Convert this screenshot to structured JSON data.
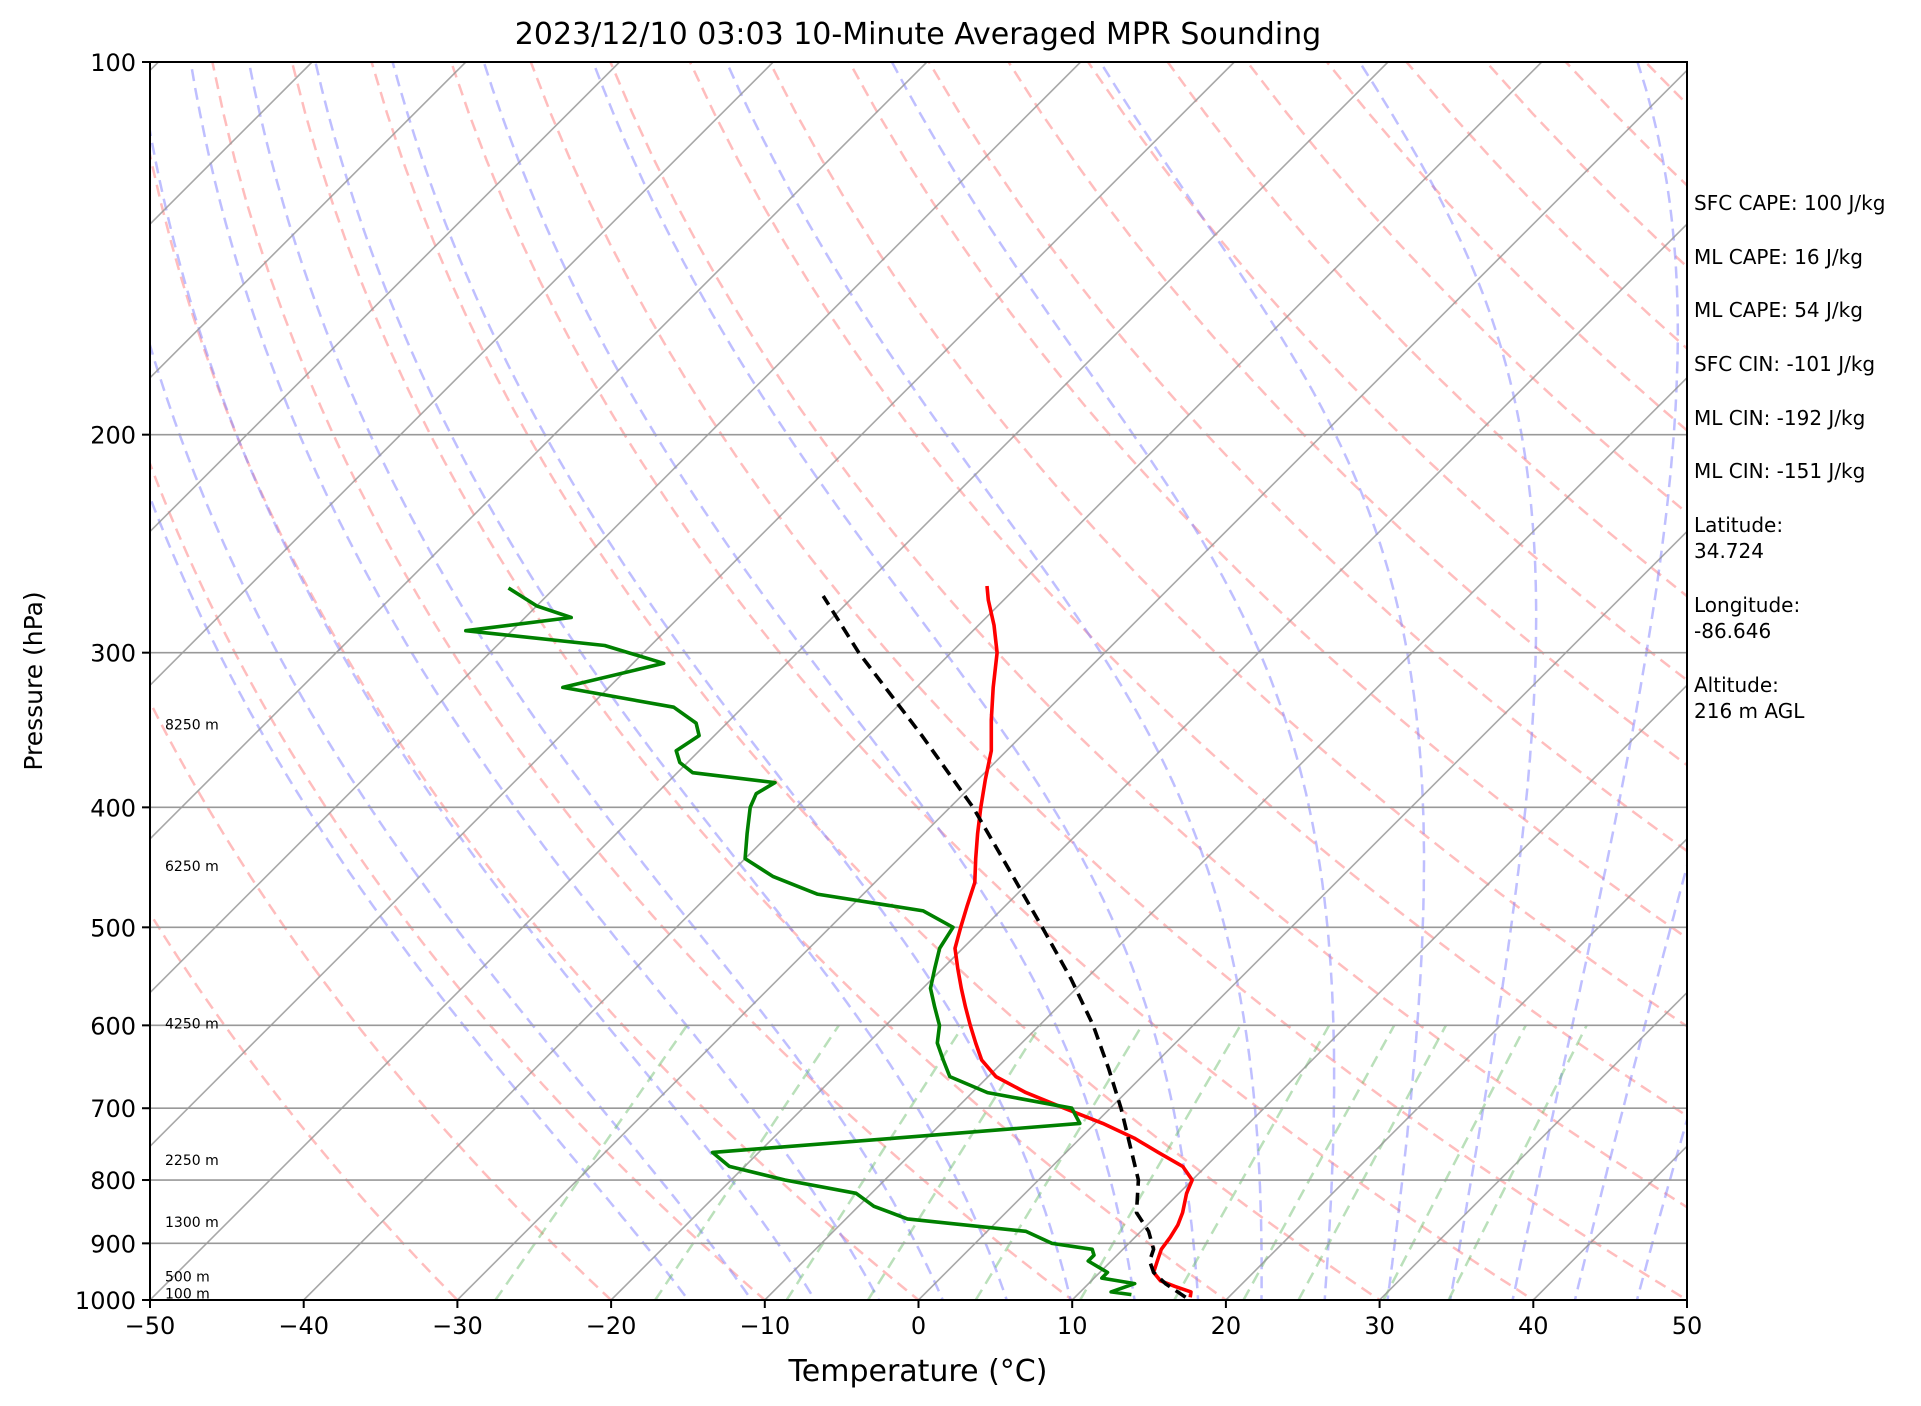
{
  "chart_data": {
    "type": "line",
    "title": "2023/12/10 03:03 10-Minute Averaged MPR Sounding",
    "xlabel": "Temperature (°C)",
    "ylabel": "Pressure (hPa)",
    "xlim": [
      -50,
      50
    ],
    "ylim": [
      1000,
      100
    ],
    "yscale": "log",
    "skew": true,
    "x_ticks": [
      "−50",
      "−40",
      "−30",
      "−20",
      "−10",
      "0",
      "10",
      "20",
      "30",
      "40",
      "50"
    ],
    "y_ticks": [
      "100",
      "200",
      "300",
      "400",
      "500",
      "600",
      "700",
      "800",
      "900",
      "1000"
    ],
    "grid": true,
    "height_labels": [
      {
        "p": 988,
        "text": "100 m"
      },
      {
        "p": 957,
        "text": "500 m"
      },
      {
        "p": 865,
        "text": "1300 m"
      },
      {
        "p": 771,
        "text": "2250 m"
      },
      {
        "p": 598,
        "text": "4250 m"
      },
      {
        "p": 446,
        "text": "6250 m"
      },
      {
        "p": 343,
        "text": "8250 m"
      }
    ],
    "series": [
      {
        "kind": "temperature",
        "color": "#ff0000",
        "points": [
          [
            17.5,
            995
          ],
          [
            17.2,
            985
          ],
          [
            15.8,
            975
          ],
          [
            14.5,
            965
          ],
          [
            13.5,
            950
          ],
          [
            13.0,
            930
          ],
          [
            12.5,
            910
          ],
          [
            12.3,
            890
          ],
          [
            12.0,
            870
          ],
          [
            11.5,
            850
          ],
          [
            10.5,
            820
          ],
          [
            10.0,
            800
          ],
          [
            8.5,
            780
          ],
          [
            6.0,
            760
          ],
          [
            3.5,
            740
          ],
          [
            0.5,
            720
          ],
          [
            -3.0,
            700
          ],
          [
            -6.5,
            680
          ],
          [
            -9.5,
            660
          ],
          [
            -11.5,
            640
          ],
          [
            -13.0,
            620
          ],
          [
            -14.5,
            600
          ],
          [
            -16.0,
            580
          ],
          [
            -17.5,
            560
          ],
          [
            -19.0,
            540
          ],
          [
            -20.5,
            520
          ],
          [
            -21.5,
            500
          ],
          [
            -22.5,
            480
          ],
          [
            -23.5,
            460
          ],
          [
            -25.0,
            440
          ],
          [
            -26.5,
            420
          ],
          [
            -28.0,
            400
          ],
          [
            -29.5,
            380
          ],
          [
            -31.0,
            360
          ],
          [
            -33.0,
            340
          ],
          [
            -35.0,
            320
          ],
          [
            -37.0,
            300
          ],
          [
            -39.0,
            285
          ],
          [
            -41.0,
            272
          ],
          [
            -42.0,
            265
          ]
        ]
      },
      {
        "kind": "dewpoint",
        "color": "#008000",
        "points": [
          [
            13.5,
            990
          ],
          [
            12.0,
            985
          ],
          [
            13.0,
            970
          ],
          [
            10.5,
            960
          ],
          [
            10.5,
            950
          ],
          [
            9.5,
            940
          ],
          [
            8.5,
            930
          ],
          [
            8.5,
            920
          ],
          [
            8.0,
            910
          ],
          [
            5.0,
            900
          ],
          [
            2.5,
            880
          ],
          [
            -6.0,
            860
          ],
          [
            -9.0,
            840
          ],
          [
            -11.0,
            820
          ],
          [
            -16.5,
            800
          ],
          [
            -21.0,
            780
          ],
          [
            -23.0,
            760
          ],
          [
            -12.0,
            740
          ],
          [
            -1.0,
            720
          ],
          [
            -2.5,
            700
          ],
          [
            -9.0,
            680
          ],
          [
            -12.5,
            660
          ],
          [
            -14.0,
            640
          ],
          [
            -15.5,
            620
          ],
          [
            -16.5,
            600
          ],
          [
            -18.0,
            580
          ],
          [
            -19.5,
            560
          ],
          [
            -20.5,
            540
          ],
          [
            -21.5,
            520
          ],
          [
            -22.0,
            500
          ],
          [
            -25.0,
            485
          ],
          [
            -33.0,
            470
          ],
          [
            -37.0,
            455
          ],
          [
            -40.0,
            440
          ],
          [
            -41.5,
            420
          ],
          [
            -43.0,
            400
          ],
          [
            -43.5,
            390
          ],
          [
            -43.0,
            382
          ],
          [
            -49.0,
            375
          ],
          [
            -50.5,
            368
          ],
          [
            -51.5,
            360
          ],
          [
            -51.0,
            350
          ],
          [
            -52.0,
            342
          ],
          [
            -54.5,
            332
          ],
          [
            -63.0,
            320
          ],
          [
            -58.0,
            306
          ],
          [
            -63.0,
            296
          ],
          [
            -73.0,
            288
          ],
          [
            -67.0,
            281
          ],
          [
            -70.0,
            275
          ],
          [
            -73.0,
            266
          ]
        ]
      },
      {
        "kind": "parcel",
        "color": "#000000",
        "points": [
          [
            17.2,
            995
          ],
          [
            15.0,
            970
          ],
          [
            13.5,
            950
          ],
          [
            12.5,
            930
          ],
          [
            12.0,
            910
          ],
          [
            10.5,
            880
          ],
          [
            8.5,
            850
          ],
          [
            6.5,
            800
          ],
          [
            3.7,
            750
          ],
          [
            0.7,
            700
          ],
          [
            -2.7,
            650
          ],
          [
            -6.5,
            600
          ],
          [
            -11.0,
            550
          ],
          [
            -16.2,
            500
          ],
          [
            -22.0,
            450
          ],
          [
            -28.5,
            400
          ],
          [
            -36.5,
            350
          ],
          [
            -46.0,
            300
          ],
          [
            -52.0,
            270
          ]
        ]
      }
    ]
  },
  "annotations": [
    "SFC CAPE: 100 J/kg",
    "ML CAPE: 16 J/kg",
    "ML CAPE: 54 J/kg",
    "SFC CIN: -101 J/kg",
    "ML CIN: -192 J/kg",
    "ML CIN: -151 J/kg",
    "Latitude:\n34.724",
    "Longitude:\n-86.646",
    "Altitude:\n216 m AGL"
  ]
}
